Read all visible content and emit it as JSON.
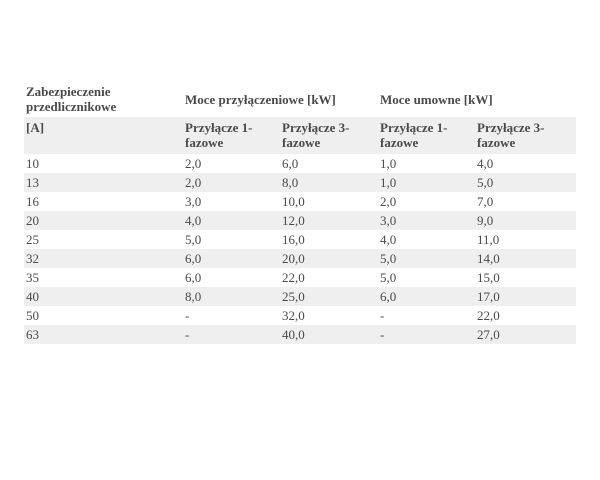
{
  "table": {
    "header_top": [
      "Zabezpieczenie przedlicznikowe",
      "Moce przyłączeniowe [kW]",
      "Moce umowne [kW]"
    ],
    "header_sub": [
      "[A]",
      "Przyłącze 1-fazowe",
      "Przyłącze 3-fazowe",
      "Przyłącze 1-fazowe",
      "Przyłącze 3-fazowe"
    ],
    "rows": [
      [
        "10",
        "2,0",
        "6,0",
        "1,0",
        "4,0"
      ],
      [
        "13",
        "2,0",
        "8,0",
        "1,0",
        "5,0"
      ],
      [
        "16",
        "3,0",
        "10,0",
        "2,0",
        "7,0"
      ],
      [
        "20",
        "4,0",
        "12,0",
        "3,0",
        "9,0"
      ],
      [
        "25",
        "5,0",
        "16,0",
        "4,0",
        "11,0"
      ],
      [
        "32",
        "6,0",
        "20,0",
        "5,0",
        "14,0"
      ],
      [
        "35",
        "6,0",
        "22,0",
        "5,0",
        "15,0"
      ],
      [
        "40",
        "8,0",
        "25,0",
        "6,0",
        "17,0"
      ],
      [
        "50",
        "-",
        "32,0",
        "-",
        "22,0"
      ],
      [
        "63",
        "-",
        "40,0",
        "-",
        "27,0"
      ]
    ]
  }
}
